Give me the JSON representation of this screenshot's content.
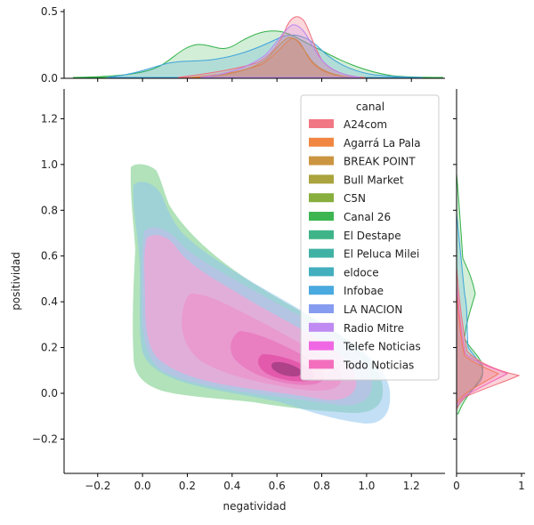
{
  "chart_data": {
    "type": "jointplot-kde",
    "xlabel": "negatividad",
    "ylabel": "positividad",
    "xlim": [
      -0.35,
      1.35
    ],
    "ylim": [
      -0.35,
      1.33
    ],
    "x_ticks": [
      "−0.2",
      "0.0",
      "0.2",
      "0.4",
      "0.6",
      "0.8",
      "1.0",
      "1.2"
    ],
    "x_tick_values": [
      -0.2,
      0.0,
      0.2,
      0.4,
      0.6,
      0.8,
      1.0,
      1.2
    ],
    "y_ticks": [
      "−0.2",
      "0.0",
      "0.2",
      "0.4",
      "0.6",
      "0.8",
      "1.0",
      "1.2"
    ],
    "y_tick_values": [
      -0.2,
      0.0,
      0.2,
      0.4,
      0.6,
      0.8,
      1.0,
      1.2
    ],
    "top_marginal": {
      "ylim": [
        0,
        0.52
      ],
      "ticks": [
        "0.0",
        "0.5"
      ],
      "tick_values": [
        0.0,
        0.5
      ]
    },
    "right_marginal": {
      "xlim": [
        0,
        1
      ],
      "ticks": [
        "0",
        "1"
      ],
      "tick_values": [
        0,
        1
      ]
    },
    "legend": {
      "title": "canal",
      "placement": "upper-right",
      "entries": [
        {
          "name": "A24com",
          "color": "#f0707e"
        },
        {
          "name": "Agarrá La Pala",
          "color": "#ef7f37"
        },
        {
          "name": "BREAK POINT",
          "color": "#c88f36"
        },
        {
          "name": "Bull Market",
          "color": "#a59e34"
        },
        {
          "name": "C5N",
          "color": "#82aa34"
        },
        {
          "name": "Canal 26",
          "color": "#33b249"
        },
        {
          "name": "El Destape",
          "color": "#35b083"
        },
        {
          "name": "El Peluca Milei",
          "color": "#37ad9f"
        },
        {
          "name": "eldoce",
          "color": "#38aabb"
        },
        {
          "name": "Infobae",
          "color": "#40a4dc"
        },
        {
          "name": "LA NACION",
          "color": "#7f97ef"
        },
        {
          "name": "Radio Mitre",
          "color": "#bc84f1"
        },
        {
          "name": "Telefe Noticias",
          "color": "#ef5fe1"
        },
        {
          "name": "Todo Noticias",
          "color": "#f267b9"
        }
      ]
    }
  }
}
